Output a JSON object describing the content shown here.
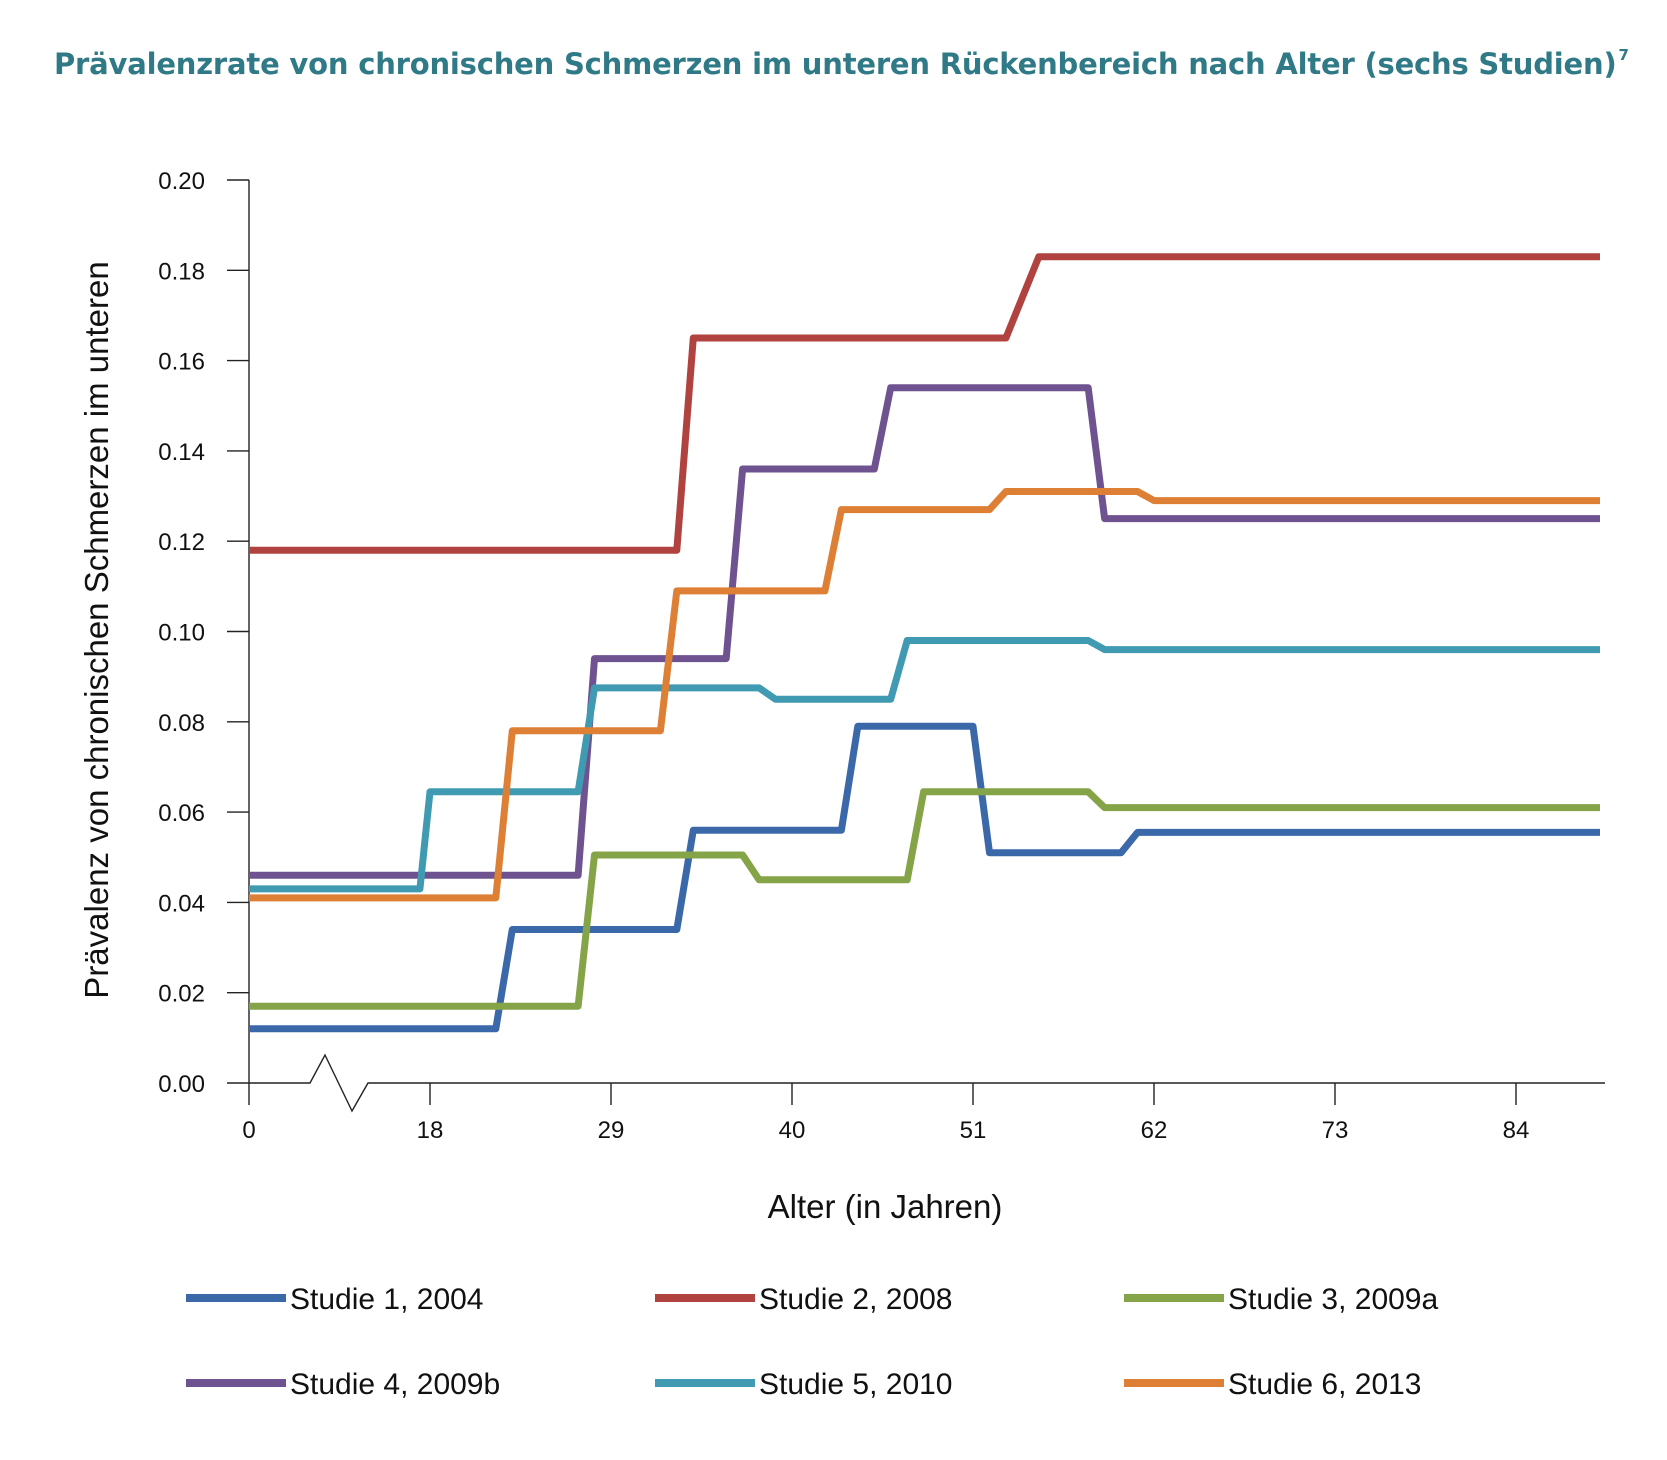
{
  "chart_data": {
    "type": "line",
    "title": "Prävalenzrate von chronischen Schmerzen im unteren Rückenbereich nach Alter (sechs Studien)",
    "title_footnote": "7",
    "xlabel": "Alter (in Jahren)",
    "ylabel": "Prävalenz von chronischen Schmerzen im unteren",
    "x_ticks": [
      0,
      18,
      29,
      40,
      51,
      62,
      73,
      84
    ],
    "y_ticks": [
      "0.00",
      "0.02",
      "0.04",
      "0.06",
      "0.08",
      "0.10",
      "0.12",
      "0.14",
      "0.16",
      "0.18",
      "0.20"
    ],
    "ylim": [
      0,
      0.2
    ],
    "axis_break": "x-axis between 0 and 18",
    "legend_position": "bottom",
    "grid": false,
    "series": [
      {
        "name": "Studie 1, 2004",
        "color": "#3b68a8",
        "x": [
          0,
          22,
          23,
          33,
          34,
          43,
          44,
          51,
          52,
          60,
          61,
          70,
          71,
          90
        ],
        "y": [
          0.012,
          0.012,
          0.034,
          0.034,
          0.056,
          0.056,
          0.079,
          0.079,
          0.051,
          0.051,
          0.0555,
          0.0555,
          0.0555,
          0.0555
        ]
      },
      {
        "name": "Studie 2, 2008",
        "color": "#b0433f",
        "x": [
          0,
          33,
          34,
          53,
          55,
          90
        ],
        "y": [
          0.118,
          0.118,
          0.165,
          0.165,
          0.183,
          0.183
        ]
      },
      {
        "name": "Studie 3, 2009a",
        "color": "#85a448",
        "x": [
          0,
          27,
          28,
          37,
          38,
          47,
          48,
          58,
          59,
          90
        ],
        "y": [
          0.017,
          0.017,
          0.0505,
          0.0505,
          0.045,
          0.045,
          0.0645,
          0.0645,
          0.061,
          0.061
        ]
      },
      {
        "name": "Studie 4, 2009b",
        "color": "#6e5390",
        "x": [
          0,
          27,
          28,
          36,
          37,
          45,
          46,
          58,
          59,
          90
        ],
        "y": [
          0.046,
          0.046,
          0.094,
          0.094,
          0.136,
          0.136,
          0.154,
          0.154,
          0.125,
          0.125
        ]
      },
      {
        "name": "Studie 5, 2010",
        "color": "#3f9ab2",
        "x": [
          0,
          17,
          18,
          27,
          28,
          38,
          39,
          46,
          47,
          58,
          59,
          90
        ],
        "y": [
          0.043,
          0.043,
          0.0645,
          0.0645,
          0.0875,
          0.0875,
          0.085,
          0.085,
          0.098,
          0.098,
          0.096,
          0.096
        ]
      },
      {
        "name": "Studie 6, 2013",
        "color": "#dd8036",
        "x": [
          0,
          22,
          23,
          32,
          33,
          42,
          43,
          52,
          53,
          61,
          62,
          90
        ],
        "y": [
          0.041,
          0.041,
          0.078,
          0.078,
          0.109,
          0.109,
          0.127,
          0.127,
          0.131,
          0.131,
          0.129,
          0.129
        ]
      }
    ]
  }
}
